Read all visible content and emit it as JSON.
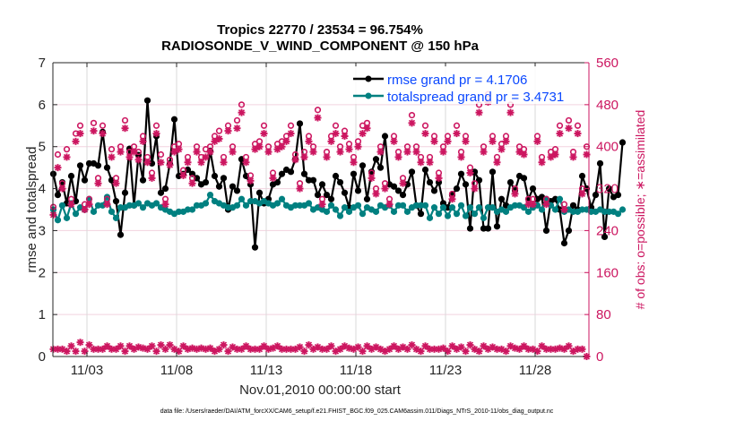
{
  "chart_data": {
    "type": "line",
    "title": "Tropics 22770 / 23534 = 96.754%",
    "subtitle": "RADIOSONDE_V_WIND_COMPONENT @ 150 hPa",
    "xlabel": "Nov.01,2010 00:00:00 start",
    "ylabel": "rmse and totalspread",
    "y2label": "# of obs: o=possible; ∗=assimilated",
    "footer": "data file: /Users/raeder/DAI/ATM_forcXX/CAM6_setup/f.e21.FHIST_BGC.f09_025.CAM6assim.011/Diags_NTrS_2010-11/obs_diag_output.nc",
    "xlim_day": [
      1.1,
      31.0
    ],
    "ylim": [
      0,
      7
    ],
    "y2lim": [
      0,
      560
    ],
    "x_ticks": [
      {
        "day": 3,
        "label": "11/03"
      },
      {
        "day": 8,
        "label": "11/08"
      },
      {
        "day": 13,
        "label": "11/13"
      },
      {
        "day": 18,
        "label": "11/18"
      },
      {
        "day": 23,
        "label": "11/23"
      },
      {
        "day": 28,
        "label": "11/28"
      }
    ],
    "y_ticks": [
      "0",
      "1",
      "2",
      "3",
      "4",
      "5",
      "6",
      "7"
    ],
    "y2_ticks": [
      "0",
      "80",
      "160",
      "240",
      "320",
      "400",
      "480",
      "560"
    ],
    "grid": true,
    "legend_position": "top-right",
    "legend": [
      {
        "name": "rmse grand pr = 4.1706",
        "color": "#000000"
      },
      {
        "name": "totalspread grand pr = 3.4731",
        "color": "#008080"
      }
    ],
    "x_start_day": 1.125,
    "x_step_day": 0.25,
    "series": [
      {
        "name": "rmse",
        "color": "#000000",
        "axis": "left",
        "values": [
          4.35,
          3.85,
          4.15,
          3.65,
          4.3,
          3.7,
          4.55,
          4.2,
          4.6,
          4.6,
          4.55,
          5.35,
          4.5,
          4.2,
          3.7,
          2.9,
          3.9,
          4.95,
          3.6,
          4.8,
          4.2,
          6.1,
          4.6,
          5.25,
          3.9,
          4.0,
          4.6,
          5.65,
          4.3,
          4.35,
          4.45,
          4.35,
          4.25,
          4.1,
          4.15,
          4.9,
          4.3,
          4.05,
          4.25,
          3.5,
          4.05,
          3.95,
          4.7,
          4.3,
          4.1,
          2.6,
          3.9,
          3.65,
          3.75,
          4.1,
          4.15,
          4.35,
          4.45,
          4.4,
          4.7,
          5.55,
          4.35,
          4.2,
          4.2,
          3.85,
          4.1,
          3.85,
          3.75,
          4.3,
          4.15,
          3.9,
          3.55,
          4.35,
          3.95,
          4.55,
          3.75,
          4.4,
          4.7,
          4.5,
          5.25,
          4.1,
          4.05,
          3.95,
          3.85,
          4.1,
          4.4,
          3.6,
          3.4,
          4.45,
          4.15,
          3.95,
          4.15,
          3.65,
          3.55,
          3.85,
          4.0,
          4.35,
          4.1,
          3.05,
          4.4,
          4.2,
          3.05,
          3.05,
          4.4,
          3.1,
          3.75,
          3.6,
          4.15,
          3.95,
          4.3,
          4.25,
          3.75,
          4.0,
          3.75,
          3.8,
          3.0,
          3.7,
          3.75,
          3.5,
          2.7,
          3.0,
          3.6,
          3.5,
          4.3,
          4.0,
          3.55,
          3.85,
          4.6,
          2.85,
          4.0,
          3.8,
          3.85,
          5.1
        ]
      },
      {
        "name": "totalspread",
        "color": "#008080",
        "axis": "left",
        "values": [
          3.5,
          3.25,
          3.6,
          3.3,
          3.65,
          3.4,
          3.55,
          3.5,
          3.75,
          3.45,
          3.6,
          3.6,
          3.8,
          3.45,
          3.3,
          3.55,
          3.55,
          3.6,
          3.6,
          3.65,
          3.55,
          3.65,
          3.6,
          3.65,
          3.55,
          3.5,
          3.45,
          3.4,
          3.45,
          3.45,
          3.5,
          3.5,
          3.6,
          3.6,
          3.65,
          3.85,
          3.7,
          3.65,
          3.6,
          3.55,
          3.55,
          3.6,
          3.75,
          3.6,
          3.7,
          3.7,
          3.65,
          3.7,
          3.65,
          3.6,
          3.65,
          3.75,
          3.6,
          3.55,
          3.6,
          3.6,
          3.6,
          3.65,
          3.5,
          3.55,
          3.5,
          3.45,
          3.6,
          3.5,
          3.35,
          3.55,
          3.45,
          3.55,
          3.6,
          3.4,
          3.55,
          3.5,
          3.45,
          3.6,
          3.55,
          3.6,
          3.45,
          3.6,
          3.6,
          3.45,
          3.55,
          3.6,
          3.6,
          3.6,
          3.3,
          3.55,
          3.4,
          3.55,
          3.35,
          3.55,
          3.4,
          3.6,
          3.35,
          3.55,
          3.4,
          3.55,
          3.3,
          3.55,
          3.55,
          3.45,
          3.5,
          3.45,
          3.55,
          3.6,
          3.6,
          3.55,
          3.45,
          3.55,
          3.6,
          3.5,
          3.75,
          3.6,
          3.5,
          3.75,
          3.45,
          3.5,
          3.45,
          3.45,
          3.5,
          3.5,
          3.45,
          3.45,
          3.5,
          3.45,
          3.45,
          3.45,
          3.4,
          3.5
        ]
      },
      {
        "name": "nobs_possible_upper",
        "color": "#cc1660",
        "axis": "right",
        "marker": "o",
        "values": [
          285,
          385,
          330,
          395,
          300,
          425,
          440,
          290,
          300,
          445,
          340,
          440,
          300,
          395,
          340,
          400,
          450,
          390,
          400,
          390,
          420,
          380,
          350,
          440,
          385,
          300,
          375,
          400,
          405,
          355,
          380,
          340,
          400,
          380,
          395,
          400,
          420,
          430,
          380,
          440,
          400,
          450,
          480,
          380,
          345,
          405,
          410,
          440,
          400,
          350,
          405,
          410,
          420,
          440,
          385,
          330,
          390,
          420,
          400,
          470,
          300,
          390,
          420,
          440,
          400,
          430,
          405,
          380,
          410,
          440,
          445,
          350,
          320,
          400,
          330,
          300,
          420,
          390,
          340,
          400,
          460,
          400,
          380,
          440,
          380,
          420,
          350,
          400,
          420,
          310,
          440,
          390,
          420,
          360,
          330,
          480,
          400,
          500,
          420,
          380,
          405,
          420,
          480,
          320,
          400,
          395,
          300,
          300,
          420,
          380,
          300,
          390,
          395,
          440,
          290,
          450,
          390,
          440,
          320,
          400
        ]
      },
      {
        "name": "nobs_assimilated_upper",
        "color": "#cc1660",
        "axis": "right",
        "marker": "*",
        "values": [
          270,
          360,
          320,
          380,
          290,
          410,
          425,
          280,
          290,
          430,
          330,
          425,
          290,
          380,
          330,
          390,
          435,
          380,
          390,
          375,
          410,
          370,
          340,
          425,
          370,
          290,
          365,
          390,
          395,
          345,
          370,
          330,
          390,
          370,
          380,
          390,
          410,
          415,
          370,
          430,
          390,
          435,
          465,
          370,
          335,
          395,
          400,
          425,
          390,
          340,
          395,
          400,
          410,
          425,
          375,
          320,
          380,
          410,
          390,
          455,
          290,
          380,
          410,
          425,
          390,
          420,
          395,
          370,
          400,
          425,
          435,
          340,
          310,
          390,
          320,
          290,
          410,
          380,
          330,
          390,
          445,
          390,
          370,
          425,
          370,
          410,
          340,
          390,
          410,
          300,
          425,
          380,
          410,
          350,
          320,
          465,
          390,
          485,
          410,
          370,
          395,
          410,
          465,
          310,
          390,
          385,
          290,
          290,
          410,
          370,
          290,
          380,
          385,
          425,
          280,
          435,
          380,
          425,
          310,
          385
        ]
      },
      {
        "name": "nobs_assimilated_lower",
        "color": "#cc1660",
        "axis": "right",
        "marker": "*",
        "values": [
          14,
          14,
          14,
          10,
          20,
          10,
          27,
          10,
          22,
          14,
          14,
          14,
          20,
          14,
          14,
          20,
          10,
          20,
          14,
          18,
          16,
          14,
          20,
          10,
          22,
          14,
          22,
          14,
          10,
          20,
          14,
          16,
          14,
          16,
          14,
          16,
          10,
          14,
          22,
          10,
          18,
          14,
          14,
          20,
          14,
          14,
          14,
          20,
          14,
          16,
          20,
          14,
          14,
          14,
          14,
          18,
          10,
          22,
          14,
          18,
          14,
          14,
          20,
          10,
          14,
          20,
          16,
          14,
          18,
          10,
          20,
          14,
          18,
          14,
          10,
          14,
          20,
          14,
          18,
          14,
          22,
          14,
          10,
          20,
          14,
          14,
          14,
          16,
          10,
          20,
          14,
          18,
          10,
          22,
          14,
          10,
          20,
          14,
          18,
          14,
          14,
          10,
          20,
          16,
          14,
          20,
          14,
          14,
          10,
          20,
          14,
          14,
          14,
          16,
          14,
          20,
          10,
          14,
          14,
          0
        ]
      }
    ]
  }
}
